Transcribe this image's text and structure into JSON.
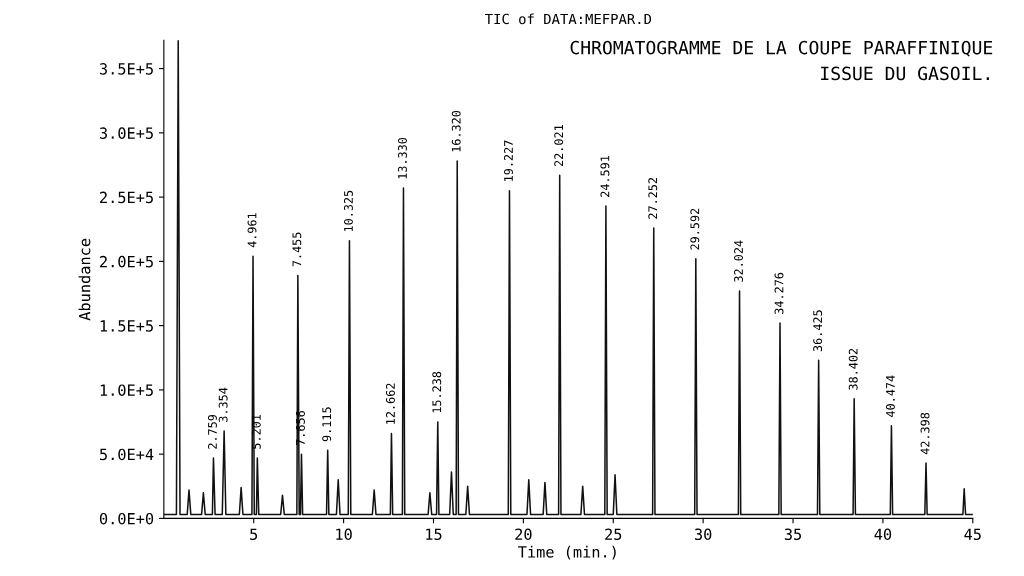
{
  "chart_data": {
    "type": "line",
    "title": "CHROMATOGRAMME DE LA COUPE PARAFFINIQUE\nISSUE DU GASOIL.",
    "subtitle": "TIC of DATA:MEFPAR.D",
    "xlabel": "Time (min.)",
    "ylabel": "Abundance",
    "series": [
      {
        "color": "#111111",
        "x": [
          0,
          0.7,
          0.8,
          0.9,
          1.3,
          1.4,
          1.5,
          2.1,
          2.2,
          2.3,
          2.7,
          2.76,
          2.85,
          3.25,
          3.354,
          3.45,
          4.2,
          4.3,
          4.4,
          4.9,
          4.961,
          5.03,
          5.15,
          5.201,
          5.28,
          6.5,
          6.6,
          6.7,
          7.4,
          7.455,
          7.53,
          7.6,
          7.656,
          7.72,
          9.05,
          9.115,
          9.18,
          9.6,
          9.7,
          9.8,
          10.26,
          10.325,
          10.4,
          11.6,
          11.7,
          11.8,
          12.6,
          12.662,
          12.73,
          13.27,
          13.33,
          13.4,
          14.7,
          14.8,
          14.9,
          15.17,
          15.238,
          15.3,
          15.9,
          16.0,
          16.1,
          16.26,
          16.32,
          16.39,
          16.8,
          16.9,
          17.0,
          19.16,
          19.227,
          19.3,
          20.2,
          20.3,
          20.4,
          21.1,
          21.2,
          21.3,
          21.96,
          22.021,
          22.09,
          23.2,
          23.3,
          23.4,
          24.53,
          24.591,
          24.66,
          25.0,
          25.1,
          25.2,
          27.19,
          27.252,
          27.32,
          29.53,
          29.592,
          29.66,
          31.96,
          32.024,
          32.09,
          34.21,
          34.276,
          34.34,
          36.36,
          36.425,
          36.49,
          38.34,
          38.402,
          38.47,
          40.41,
          40.474,
          40.54,
          42.33,
          42.398,
          42.46,
          44.45,
          44.52,
          44.6,
          45
        ],
        "values": [
          3000,
          3000,
          372000,
          3000,
          3000,
          22000,
          3000,
          3000,
          20000,
          3000,
          3000,
          47000,
          3000,
          3000,
          68000,
          3000,
          3000,
          24000,
          3000,
          3000,
          204000,
          3000,
          3000,
          47000,
          3000,
          3000,
          18000,
          3000,
          3000,
          189000,
          3000,
          3000,
          50000,
          3000,
          3000,
          53000,
          3000,
          3000,
          30000,
          3000,
          3000,
          216000,
          3000,
          3000,
          22000,
          3000,
          3000,
          66000,
          3000,
          3000,
          257000,
          3000,
          3000,
          20000,
          3000,
          3000,
          75000,
          3000,
          3000,
          36000,
          3000,
          3000,
          278000,
          3000,
          3000,
          25000,
          3000,
          3000,
          255000,
          3000,
          3000,
          30000,
          3000,
          3000,
          28000,
          3000,
          3000,
          267000,
          3000,
          3000,
          25000,
          3000,
          3000,
          243000,
          3000,
          3000,
          34000,
          3000,
          3000,
          226000,
          3000,
          3000,
          202000,
          3000,
          3000,
          177000,
          3000,
          3000,
          152000,
          3000,
          3000,
          123000,
          3000,
          3000,
          93000,
          3000,
          3000,
          72000,
          3000,
          3000,
          43000,
          3000,
          3000,
          23000,
          3000,
          3000
        ]
      }
    ],
    "xlim": [
      0,
      45
    ],
    "xticks": [
      5,
      10,
      15,
      20,
      25,
      30,
      35,
      40,
      45
    ],
    "ylim": [
      0,
      372000
    ],
    "yticks": [
      {
        "value": 0,
        "label": "0.0E+0"
      },
      {
        "value": 50000,
        "label": "5.0E+4"
      },
      {
        "value": 100000,
        "label": "1.0E+5"
      },
      {
        "value": 150000,
        "label": "1.5E+5"
      },
      {
        "value": 200000,
        "label": "2.0E+5"
      },
      {
        "value": 250000,
        "label": "2.5E+5"
      },
      {
        "value": 300000,
        "label": "3.0E+5"
      },
      {
        "value": 350000,
        "label": "3.5E+5"
      }
    ],
    "grid": false,
    "marker": "none",
    "line_style": "solid",
    "legend": false,
    "annotations": [
      {
        "text": "2.759",
        "x": 2.76,
        "y": 47000
      },
      {
        "text": "3.354",
        "x": 3.354,
        "y": 68000
      },
      {
        "text": "4.961",
        "x": 4.961,
        "y": 204000
      },
      {
        "text": "5.201",
        "x": 5.201,
        "y": 47000
      },
      {
        "text": "7.455",
        "x": 7.455,
        "y": 189000
      },
      {
        "text": "7.656",
        "x": 7.656,
        "y": 50000
      },
      {
        "text": "9.115",
        "x": 9.115,
        "y": 53000
      },
      {
        "text": "10.325",
        "x": 10.325,
        "y": 216000
      },
      {
        "text": "12.662",
        "x": 12.662,
        "y": 66000
      },
      {
        "text": "13.330",
        "x": 13.33,
        "y": 257000
      },
      {
        "text": "15.238",
        "x": 15.238,
        "y": 75000
      },
      {
        "text": "16.320",
        "x": 16.32,
        "y": 278000
      },
      {
        "text": "19.227",
        "x": 19.227,
        "y": 255000
      },
      {
        "text": "22.021",
        "x": 22.021,
        "y": 267000
      },
      {
        "text": "24.591",
        "x": 24.591,
        "y": 243000
      },
      {
        "text": "27.252",
        "x": 27.252,
        "y": 226000
      },
      {
        "text": "29.592",
        "x": 29.592,
        "y": 202000
      },
      {
        "text": "32.024",
        "x": 32.024,
        "y": 177000
      },
      {
        "text": "34.276",
        "x": 34.276,
        "y": 152000
      },
      {
        "text": "36.425",
        "x": 36.425,
        "y": 123000
      },
      {
        "text": "38.402",
        "x": 38.402,
        "y": 93000
      },
      {
        "text": "40.474",
        "x": 40.474,
        "y": 72000
      },
      {
        "text": "42.398",
        "x": 42.398,
        "y": 43000
      }
    ]
  }
}
